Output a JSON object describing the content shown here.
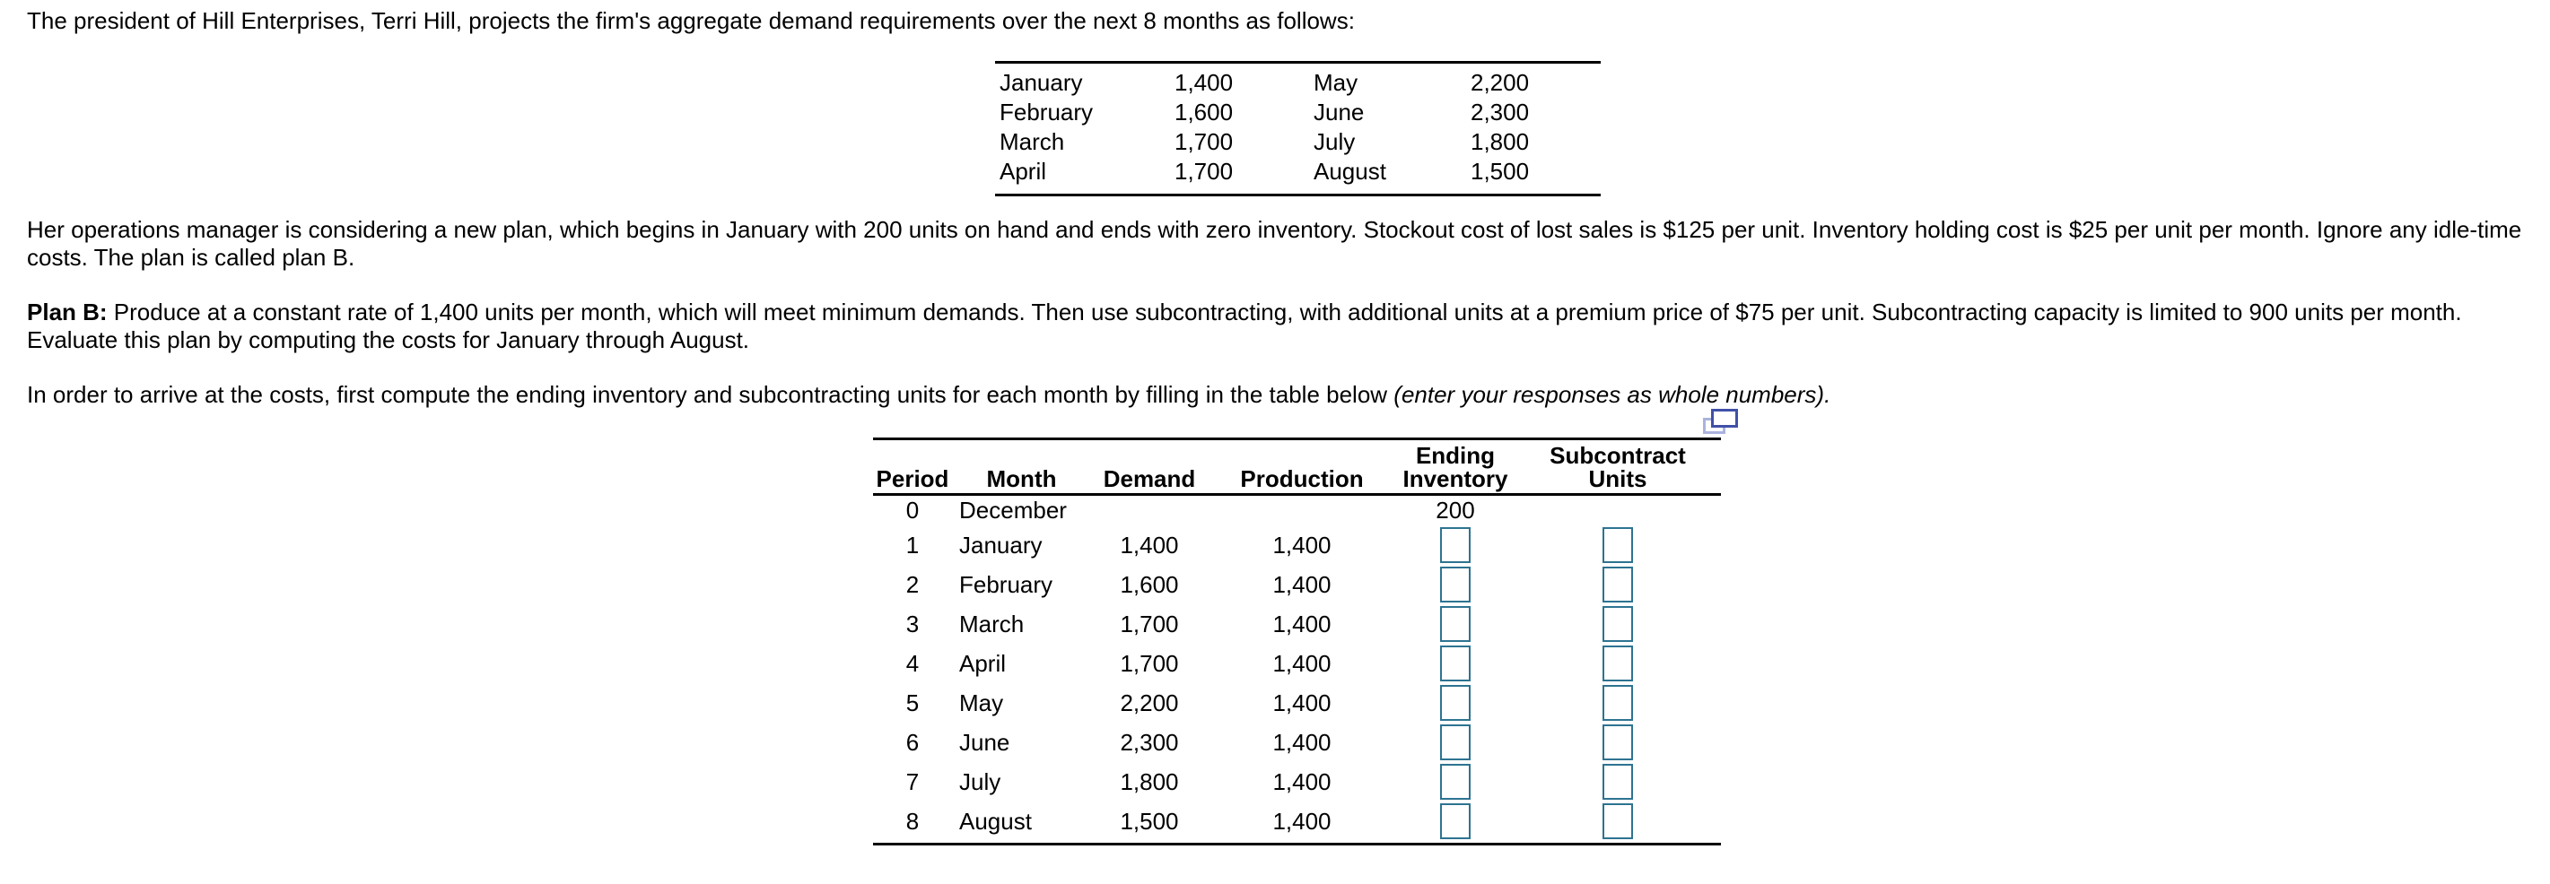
{
  "intro": "The president of Hill Enterprises, Terri Hill, projects the firm's aggregate demand requirements over the next 8 months as follows:",
  "demand_table": {
    "rows": [
      {
        "m1": "January",
        "v1": "1,400",
        "m2": "May",
        "v2": "2,200"
      },
      {
        "m1": "February",
        "v1": "1,600",
        "m2": "June",
        "v2": "2,300"
      },
      {
        "m1": "March",
        "v1": "1,700",
        "m2": "July",
        "v2": "1,800"
      },
      {
        "m1": "April",
        "v1": "1,700",
        "m2": "August",
        "v2": "1,500"
      }
    ]
  },
  "plan_paragraph": {
    "line1": "Her operations manager is considering a new plan, which begins in January with 200 units on hand and ends with zero inventory. Stockout cost of lost sales is $125 per unit. Inventory holding cost is $25 per unit per month. Ignore any idle-time",
    "line2": "costs. The plan is called plan B."
  },
  "plan_b": {
    "label": "Plan B:",
    "line1_rest": " Produce at a constant rate of 1,400 units per month, which will meet minimum demands. Then use subcontracting, with additional units at a premium price of $75 per unit. Subcontracting capacity is limited to 900 units per month.",
    "line2": "Evaluate this plan by computing the costs for January through August."
  },
  "instruction": {
    "normal": "In order to arrive at the costs, first compute the ending inventory and subcontracting units for each month by filling in the table below ",
    "italic": "(enter your responses as whole numbers)."
  },
  "answer_table": {
    "headers": {
      "period": "Period",
      "month": "Month",
      "demand": "Demand",
      "production": "Production",
      "ending_line1": "Ending",
      "ending_line2": "Inventory",
      "sub_line1": "Subcontract",
      "sub_line2": "Units"
    },
    "rows": [
      {
        "period": "0",
        "month": "December",
        "demand": "",
        "production": "",
        "ending": "200",
        "inputs": false
      },
      {
        "period": "1",
        "month": "January",
        "demand": "1,400",
        "production": "1,400",
        "ending": "",
        "inputs": true
      },
      {
        "period": "2",
        "month": "February",
        "demand": "1,600",
        "production": "1,400",
        "ending": "",
        "inputs": true
      },
      {
        "period": "3",
        "month": "March",
        "demand": "1,700",
        "production": "1,400",
        "ending": "",
        "inputs": true
      },
      {
        "period": "4",
        "month": "April",
        "demand": "1,700",
        "production": "1,400",
        "ending": "",
        "inputs": true
      },
      {
        "period": "5",
        "month": "May",
        "demand": "2,200",
        "production": "1,400",
        "ending": "",
        "inputs": true
      },
      {
        "period": "6",
        "month": "June",
        "demand": "2,300",
        "production": "1,400",
        "ending": "",
        "inputs": true
      },
      {
        "period": "7",
        "month": "July",
        "demand": "1,800",
        "production": "1,400",
        "ending": "",
        "inputs": true
      },
      {
        "period": "8",
        "month": "August",
        "demand": "1,500",
        "production": "1,400",
        "ending": "",
        "inputs": true
      }
    ],
    "input_value": ""
  },
  "icons": {
    "table_popup": "popup-window-icon"
  },
  "colors": {
    "input_border": "#2d7391",
    "icon_front": "#4050a8",
    "icon_back": "#aab3de",
    "rule": "#000000",
    "text": "#000000"
  }
}
